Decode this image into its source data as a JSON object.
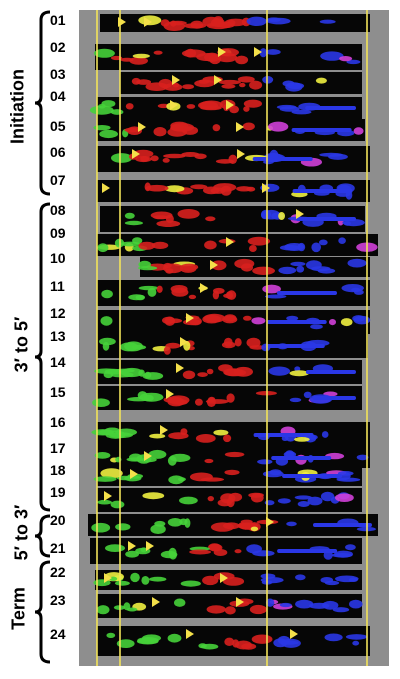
{
  "phases": [
    {
      "id": "initiation",
      "label": "Initiation"
    },
    {
      "id": "three-to-five",
      "label": "3′ to 5′"
    },
    {
      "id": "five-to-three",
      "label": "5′ to 3′"
    },
    {
      "id": "term",
      "label": "Term"
    }
  ],
  "rows": [
    "01",
    "02",
    "03",
    "04",
    "05",
    "06",
    "07",
    "08",
    "09",
    "10",
    "11",
    "12",
    "13",
    "14",
    "15",
    "16",
    "17",
    "18",
    "19",
    "20",
    "21",
    "22",
    "23",
    "24"
  ],
  "colors": {
    "panel_bg": "#8e8e8e",
    "strip_bg": "#060606",
    "guide_line": "#f2e35a",
    "marker": "#f4e04a",
    "green_signal": "#46d23a",
    "red_signal": "#d8201e",
    "blue_signal": "#2a37e6",
    "yellow_signal": "#f0f040",
    "magenta_signal": "#d040d8"
  }
}
